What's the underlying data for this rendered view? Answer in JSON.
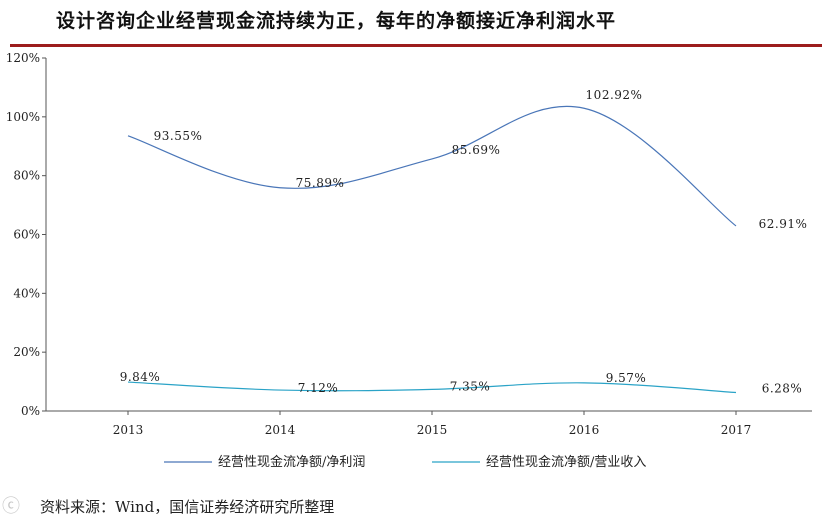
{
  "title": "设计咨询企业经营现金流持续为正，每年的净额接近净利润水平",
  "source": "资料来源：Wind，国信证券经济研究所整理",
  "watermark": "ⓒ",
  "chart_data": {
    "type": "line",
    "title": "",
    "xlabel": "",
    "ylabel": "",
    "categories": [
      "2013",
      "2014",
      "2015",
      "2016",
      "2017"
    ],
    "ylim": [
      0,
      120
    ],
    "yticks": [
      "0%",
      "20%",
      "40%",
      "60%",
      "80%",
      "100%",
      "120%"
    ],
    "grid": false,
    "legend_position": "bottom",
    "series": [
      {
        "name": "经营性现金流净额/净利润",
        "values": [
          93.55,
          75.89,
          85.69,
          102.92,
          62.91
        ],
        "labels": [
          "93.55%",
          "75.89%",
          "85.69%",
          "102.92%",
          "62.91%"
        ],
        "color": "#4a76b8"
      },
      {
        "name": "经营性现金流净额/营业收入",
        "values": [
          9.84,
          7.12,
          7.35,
          9.57,
          6.28
        ],
        "labels": [
          "9.84%",
          "7.12%",
          "7.35%",
          "9.57%",
          "6.28%"
        ],
        "color": "#2aa3c7"
      }
    ]
  }
}
